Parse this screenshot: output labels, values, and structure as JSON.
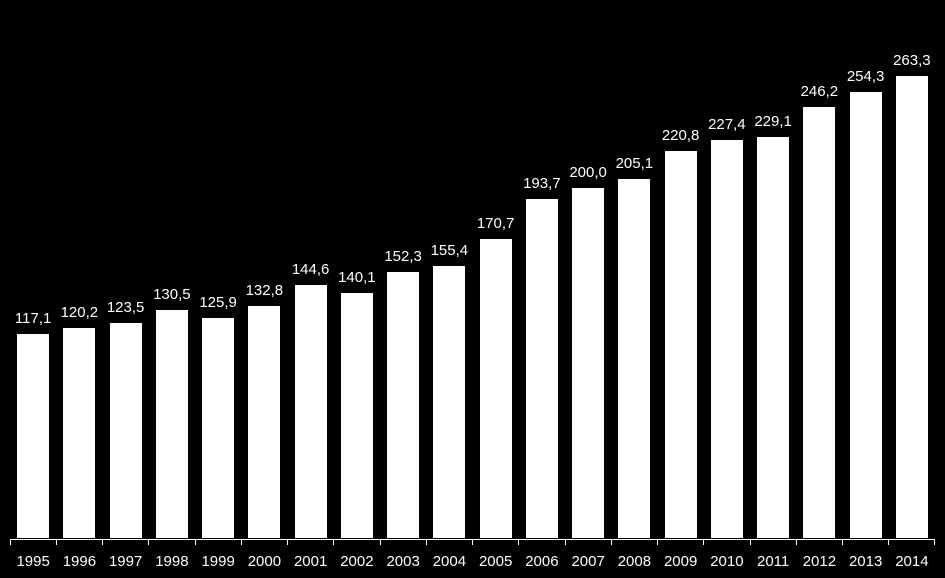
{
  "chart": {
    "type": "bar",
    "background_color": "#000000",
    "bar_color": "#ffffff",
    "text_color": "#ffffff",
    "axis_color": "#ffffff",
    "bar_width_ratio": 0.74,
    "value_label_fontsize": 15,
    "x_label_fontsize": 15,
    "ylim": [
      0,
      280
    ],
    "categories": [
      "1995",
      "1996",
      "1997",
      "1998",
      "1999",
      "2000",
      "2001",
      "2002",
      "2003",
      "2004",
      "2005",
      "2006",
      "2007",
      "2008",
      "2009",
      "2010",
      "2011",
      "2012",
      "2013",
      "2014"
    ],
    "values": [
      117.1,
      120.2,
      123.5,
      130.5,
      125.9,
      132.8,
      144.6,
      140.1,
      152.3,
      155.4,
      170.7,
      193.7,
      200.0,
      205.1,
      220.8,
      227.4,
      229.1,
      246.2,
      254.3,
      263.3
    ],
    "value_labels": [
      "117,1",
      "120,2",
      "123,5",
      "130,5",
      "125,9",
      "132,8",
      "144,6",
      "140,1",
      "152,3",
      "155,4",
      "170,7",
      "193,7",
      "200,0",
      "205,1",
      "220,8",
      "227,4",
      "229,1",
      "246,2",
      "254,3",
      "263,3"
    ]
  }
}
